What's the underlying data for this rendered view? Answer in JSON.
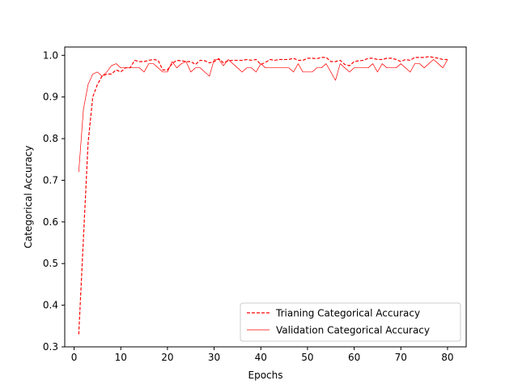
{
  "chart_data": {
    "type": "line",
    "title": "",
    "xlabel": "Epochs",
    "ylabel": "Categorical Accuracy",
    "xlim": [
      -2,
      84
    ],
    "ylim": [
      0.3,
      1.02
    ],
    "xticks": [
      0,
      10,
      20,
      30,
      40,
      50,
      60,
      70,
      80
    ],
    "xtick_labels": [
      "0",
      "10",
      "20",
      "30",
      "40",
      "50",
      "60",
      "70",
      "80"
    ],
    "yticks": [
      0.3,
      0.4,
      0.5,
      0.6,
      0.7,
      0.8,
      0.9,
      1.0
    ],
    "ytick_labels": [
      "0.3",
      "0.4",
      "0.5",
      "0.6",
      "0.7",
      "0.8",
      "0.9",
      "1.0"
    ],
    "grid": false,
    "legend_position": "lower-right",
    "x": [
      1,
      2,
      3,
      4,
      5,
      6,
      7,
      8,
      9,
      10,
      11,
      12,
      13,
      14,
      15,
      16,
      17,
      18,
      19,
      20,
      21,
      22,
      23,
      24,
      25,
      26,
      27,
      28,
      29,
      30,
      31,
      32,
      33,
      34,
      35,
      36,
      37,
      38,
      39,
      40,
      41,
      42,
      43,
      44,
      45,
      46,
      47,
      48,
      49,
      50,
      51,
      52,
      53,
      54,
      55,
      56,
      57,
      58,
      59,
      60,
      61,
      62,
      63,
      64,
      65,
      66,
      67,
      68,
      69,
      70,
      71,
      72,
      73,
      74,
      75,
      76,
      77,
      78,
      79,
      80
    ],
    "series": [
      {
        "name": "Trianing Categorical Accuracy",
        "color": "#ff0000",
        "style": "dashed",
        "values": [
          0.33,
          0.56,
          0.79,
          0.9,
          0.93,
          0.95,
          0.955,
          0.955,
          0.965,
          0.96,
          0.97,
          0.97,
          0.988,
          0.985,
          0.985,
          0.988,
          0.99,
          0.988,
          0.965,
          0.965,
          0.98,
          0.988,
          0.987,
          0.985,
          0.985,
          0.978,
          0.988,
          0.987,
          0.982,
          0.985,
          0.992,
          0.982,
          0.987,
          0.988,
          0.988,
          0.988,
          0.99,
          0.988,
          0.99,
          0.978,
          0.983,
          0.99,
          0.988,
          0.99,
          0.99,
          0.99,
          0.993,
          0.988,
          0.988,
          0.993,
          0.993,
          0.992,
          0.995,
          0.995,
          0.985,
          0.985,
          0.988,
          0.978,
          0.975,
          0.985,
          0.987,
          0.988,
          0.993,
          0.993,
          0.99,
          0.99,
          0.993,
          0.993,
          0.99,
          0.985,
          0.99,
          0.988,
          0.995,
          0.995,
          0.995,
          0.997,
          0.995,
          0.993,
          0.99,
          0.99
        ]
      },
      {
        "name": "Validation Categorical Accuracy",
        "color": "#ff0000",
        "style": "solid",
        "values": [
          0.72,
          0.87,
          0.93,
          0.955,
          0.96,
          0.95,
          0.96,
          0.975,
          0.98,
          0.97,
          0.97,
          0.97,
          0.97,
          0.97,
          0.96,
          0.98,
          0.98,
          0.97,
          0.96,
          0.96,
          0.985,
          0.97,
          0.98,
          0.985,
          0.96,
          0.97,
          0.97,
          0.96,
          0.95,
          0.99,
          0.99,
          0.975,
          0.99,
          0.98,
          0.97,
          0.96,
          0.97,
          0.97,
          0.96,
          0.98,
          0.97,
          0.97,
          0.97,
          0.97,
          0.97,
          0.97,
          0.96,
          0.98,
          0.96,
          0.96,
          0.96,
          0.97,
          0.97,
          0.98,
          0.96,
          0.94,
          0.98,
          0.97,
          0.96,
          0.97,
          0.97,
          0.97,
          0.97,
          0.98,
          0.96,
          0.98,
          0.97,
          0.97,
          0.97,
          0.98,
          0.97,
          0.96,
          0.98,
          0.98,
          0.97,
          0.98,
          0.99,
          0.98,
          0.97,
          0.99
        ]
      }
    ]
  }
}
